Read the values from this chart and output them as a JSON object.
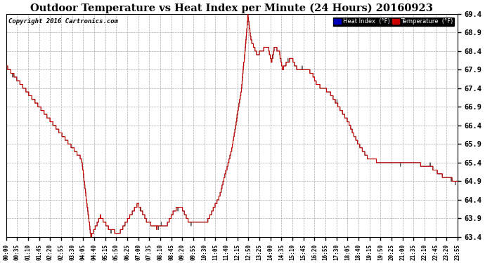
{
  "title": "Outdoor Temperature vs Heat Index per Minute (24 Hours) 20160923",
  "copyright": "Copyright 2016 Cartronics.com",
  "ylim": [
    63.4,
    69.4
  ],
  "ytick_min": 63.4,
  "ytick_max": 69.4,
  "ytick_step": 0.5,
  "background_color": "#ffffff",
  "plot_bg_color": "#ffffff",
  "grid_color": "#aaaaaa",
  "legend_heat_color": "#0000bb",
  "legend_temp_color": "#cc0000",
  "line_color_temp": "#cc0000",
  "line_color_heat": "#555555",
  "title_fontsize": 11,
  "copyright_fontsize": 7,
  "x_tick_labels": [
    "00:00",
    "00:35",
    "01:10",
    "01:45",
    "02:20",
    "02:55",
    "03:30",
    "04:05",
    "04:40",
    "05:15",
    "05:50",
    "06:25",
    "07:00",
    "07:35",
    "08:10",
    "08:45",
    "09:20",
    "09:55",
    "10:30",
    "11:05",
    "11:40",
    "12:15",
    "12:50",
    "13:25",
    "14:00",
    "14:35",
    "15:10",
    "15:45",
    "16:20",
    "16:55",
    "17:30",
    "18:05",
    "18:40",
    "19:15",
    "19:50",
    "20:25",
    "21:00",
    "21:35",
    "22:10",
    "22:45",
    "23:20",
    "23:55"
  ]
}
